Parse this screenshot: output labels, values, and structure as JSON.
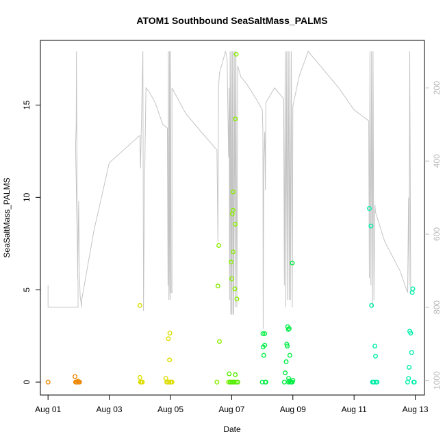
{
  "chart_data": {
    "type": "scatter",
    "title": "ATOM1 Southbound SeaSaltMass_PALMS",
    "xlabel": "Date",
    "ylabel": "SeaSaltMass_PALMS",
    "x_range": [
      "2016-08-01",
      "2016-08-13"
    ],
    "xlim": [
      -0.25,
      12.3
    ],
    "ylim": [
      -0.7,
      18.5
    ],
    "x_ticks": [
      {
        "label": "Aug 01",
        "value": 0
      },
      {
        "label": "Aug 03",
        "value": 2
      },
      {
        "label": "Aug 05",
        "value": 4
      },
      {
        "label": "Aug 07",
        "value": 6
      },
      {
        "label": "Aug 09",
        "value": 8
      },
      {
        "label": "Aug 11",
        "value": 10
      },
      {
        "label": "Aug 13",
        "value": 12
      }
    ],
    "y_ticks": [
      0,
      5,
      10,
      15
    ],
    "secondary_axis": {
      "side": "right",
      "color": "#b8b8b8",
      "reversed": true,
      "range": [
        70,
        1040
      ],
      "ticks": [
        200,
        400,
        600,
        800,
        1000
      ]
    },
    "grid": false,
    "series": [
      {
        "color": "#ee8800",
        "points": [
          [
            0,
            0
          ],
          [
            0.88,
            0.3
          ],
          [
            0.9,
            0
          ],
          [
            0.92,
            0
          ],
          [
            0.95,
            0
          ],
          [
            0.98,
            0.05
          ],
          [
            1.0,
            0
          ],
          [
            1.03,
            0
          ]
        ]
      },
      {
        "color": "#dddd00",
        "points": [
          [
            3.0,
            4.15
          ],
          [
            3.0,
            0.25
          ],
          [
            3.02,
            0
          ],
          [
            3.05,
            0
          ],
          [
            3.08,
            0
          ],
          [
            3.85,
            0.2
          ],
          [
            3.88,
            0
          ],
          [
            3.9,
            0
          ],
          [
            3.93,
            2.35
          ],
          [
            3.95,
            0
          ],
          [
            3.97,
            1.2
          ],
          [
            3.98,
            2.65
          ],
          [
            4.0,
            0
          ],
          [
            4.02,
            0
          ],
          [
            4.05,
            0
          ]
        ]
      },
      {
        "color": "#88ee00",
        "points": [
          [
            5.52,
            0
          ],
          [
            5.55,
            5.2
          ],
          [
            5.58,
            7.4
          ],
          [
            5.6,
            2.2
          ],
          [
            5.9,
            0
          ],
          [
            5.95,
            0
          ],
          [
            5.98,
            6.5
          ],
          [
            6.0,
            5.6
          ],
          [
            6.02,
            9.1
          ],
          [
            6.05,
            10.3
          ],
          [
            6.05,
            9.3
          ],
          [
            6.05,
            7.05
          ],
          [
            6.07,
            0
          ],
          [
            6.1,
            5.05
          ],
          [
            6.12,
            8.55
          ],
          [
            6.12,
            14.25
          ],
          [
            6.15,
            17.75
          ],
          [
            6.17,
            4.5
          ],
          [
            6.2,
            0
          ]
        ]
      },
      {
        "color": "#55ee00",
        "points": [
          [
            5.92,
            0.45
          ],
          [
            5.95,
            0
          ],
          [
            6.0,
            0
          ],
          [
            6.03,
            0
          ],
          [
            6.08,
            0
          ],
          [
            6.12,
            0.4
          ],
          [
            6.15,
            0
          ],
          [
            6.2,
            0
          ]
        ]
      },
      {
        "color": "#00ee44",
        "points": [
          [
            7.0,
            0
          ],
          [
            7.02,
            2.62
          ],
          [
            7.03,
            1.9
          ],
          [
            7.05,
            1.45
          ],
          [
            7.08,
            2.0
          ],
          [
            7.08,
            2.62
          ],
          [
            7.1,
            0
          ],
          [
            7.12,
            0
          ],
          [
            7.72,
            0
          ],
          [
            7.75,
            0.5
          ],
          [
            7.78,
            1.1
          ],
          [
            7.8,
            2.05
          ],
          [
            7.82,
            1.95
          ],
          [
            7.83,
            3.0
          ],
          [
            7.85,
            2.85
          ],
          [
            7.85,
            0
          ],
          [
            7.88,
            2.9
          ],
          [
            7.9,
            1.45
          ],
          [
            7.92,
            0
          ],
          [
            7.95,
            0
          ],
          [
            7.98,
            0
          ],
          [
            7.98,
            6.45
          ],
          [
            8.0,
            0.1
          ],
          [
            7.88,
            0.05
          ],
          [
            7.86,
            0.2
          ]
        ]
      },
      {
        "color": "#00eeaa",
        "points": [
          [
            10.5,
            9.4
          ],
          [
            10.55,
            8.45
          ],
          [
            10.57,
            4.15
          ],
          [
            10.6,
            0
          ],
          [
            10.63,
            0
          ],
          [
            10.65,
            0
          ],
          [
            10.68,
            1.95
          ],
          [
            10.7,
            1.4
          ],
          [
            10.72,
            0
          ],
          [
            10.75,
            0
          ],
          [
            11.75,
            0
          ],
          [
            11.78,
            0.2
          ],
          [
            11.8,
            0.8
          ],
          [
            11.82,
            2.75
          ],
          [
            11.85,
            2.65
          ],
          [
            11.88,
            1.6
          ],
          [
            11.9,
            4.85
          ],
          [
            11.92,
            5.05
          ],
          [
            11.95,
            0
          ],
          [
            11.97,
            0
          ]
        ]
      }
    ],
    "pressure_line": {
      "color": "#c4c4c4",
      "points": [
        [
          0,
          740
        ],
        [
          0,
          800
        ],
        [
          0.98,
          800
        ],
        [
          0.98,
          740
        ],
        [
          0.9,
          360
        ],
        [
          0.92,
          300
        ],
        [
          0.93,
          100
        ],
        [
          0.95,
          520
        ],
        [
          0.97,
          720
        ],
        [
          1.0,
          510
        ],
        [
          1.02,
          700
        ],
        [
          1.05,
          770
        ],
        [
          1.1,
          800
        ],
        [
          1.1,
          780
        ],
        [
          1.5,
          590
        ],
        [
          2.0,
          405
        ],
        [
          3.0,
          330
        ],
        [
          3.02,
          420
        ],
        [
          3.1,
          100
        ],
        [
          3.12,
          810
        ],
        [
          3.15,
          480
        ],
        [
          3.2,
          200
        ],
        [
          3.3,
          210
        ],
        [
          3.5,
          240
        ],
        [
          3.75,
          300
        ],
        [
          3.9,
          310
        ],
        [
          3.92,
          740
        ],
        [
          3.93,
          100
        ],
        [
          3.95,
          780
        ],
        [
          3.96,
          740
        ],
        [
          3.97,
          100
        ],
        [
          3.99,
          780
        ],
        [
          4.0,
          100
        ],
        [
          4.02,
          760
        ],
        [
          4.05,
          760
        ],
        [
          4.05,
          200
        ],
        [
          4.5,
          270
        ],
        [
          5.0,
          320
        ],
        [
          5.52,
          370
        ],
        [
          5.55,
          620
        ],
        [
          5.57,
          200
        ],
        [
          5.6,
          160
        ],
        [
          5.8,
          100
        ],
        [
          5.85,
          120
        ],
        [
          5.9,
          390
        ],
        [
          5.92,
          200
        ],
        [
          5.93,
          780
        ],
        [
          5.95,
          100
        ],
        [
          5.97,
          820
        ],
        [
          5.98,
          100
        ],
        [
          6.0,
          820
        ],
        [
          6.02,
          100
        ],
        [
          6.04,
          820
        ],
        [
          6.05,
          100
        ],
        [
          6.07,
          820
        ],
        [
          6.1,
          100
        ],
        [
          6.12,
          800
        ],
        [
          6.14,
          100
        ],
        [
          6.17,
          800
        ],
        [
          6.2,
          140
        ],
        [
          6.3,
          170
        ],
        [
          6.5,
          190
        ],
        [
          6.8,
          230
        ],
        [
          7.0,
          260
        ],
        [
          7.02,
          320
        ],
        [
          7.03,
          860
        ],
        [
          7.05,
          400
        ],
        [
          7.08,
          320
        ],
        [
          7.1,
          480
        ],
        [
          7.12,
          240
        ],
        [
          7.4,
          200
        ],
        [
          7.7,
          230
        ],
        [
          7.72,
          740
        ],
        [
          7.75,
          100
        ],
        [
          7.77,
          800
        ],
        [
          7.8,
          100
        ],
        [
          7.82,
          780
        ],
        [
          7.85,
          100
        ],
        [
          7.88,
          780
        ],
        [
          7.9,
          100
        ],
        [
          7.92,
          780
        ],
        [
          7.95,
          100
        ],
        [
          7.98,
          800
        ],
        [
          8.0,
          250
        ],
        [
          8.2,
          170
        ],
        [
          8.5,
          100
        ],
        [
          9.0,
          150
        ],
        [
          9.5,
          200
        ],
        [
          10.0,
          260
        ],
        [
          10.48,
          290
        ],
        [
          10.5,
          720
        ],
        [
          10.52,
          100
        ],
        [
          10.55,
          740
        ],
        [
          10.57,
          100
        ],
        [
          10.6,
          800
        ],
        [
          10.62,
          100
        ],
        [
          10.65,
          780
        ],
        [
          10.68,
          520
        ],
        [
          10.7,
          540
        ],
        [
          11.0,
          620
        ],
        [
          11.5,
          700
        ],
        [
          11.75,
          760
        ],
        [
          11.78,
          500
        ],
        [
          11.8,
          740
        ],
        [
          11.82,
          100
        ],
        [
          11.85,
          760
        ]
      ]
    }
  }
}
